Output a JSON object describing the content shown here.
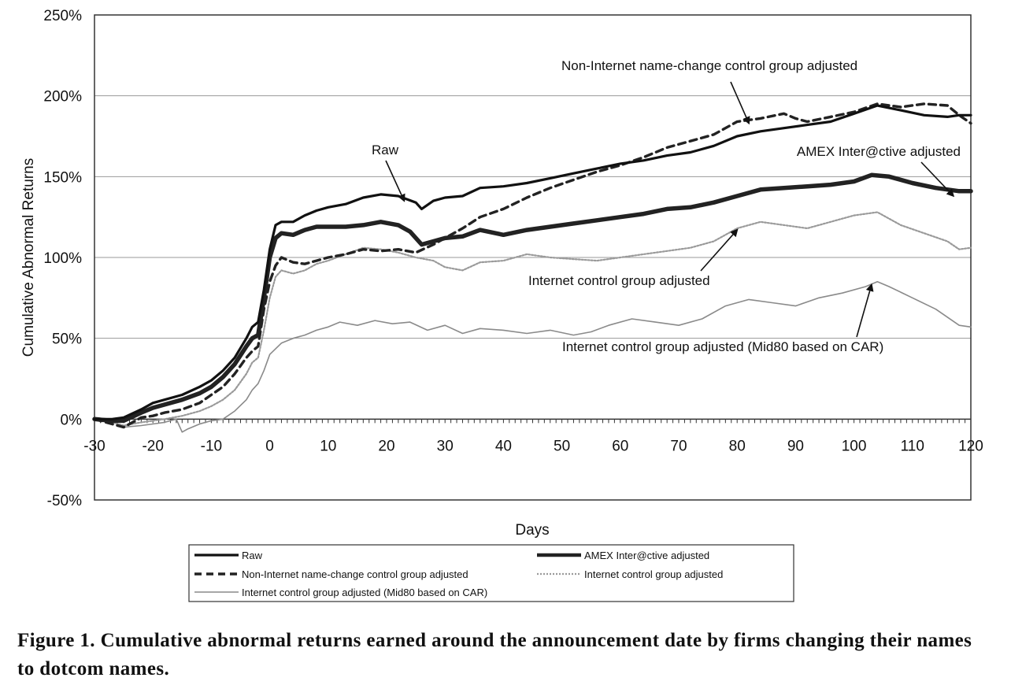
{
  "caption": "Figure 1. Cumulative abnormal returns earned around the announcement date by firms changing their names to dotcom names.",
  "chart_data": {
    "type": "line",
    "title": "",
    "xlabel": "Days",
    "ylabel": "Cumulative Abnormal Returns",
    "xlim": [
      -30,
      120
    ],
    "ylim": [
      -0.5,
      2.5
    ],
    "x_ticks": [
      -30,
      -20,
      -10,
      0,
      10,
      20,
      30,
      40,
      50,
      60,
      70,
      80,
      90,
      100,
      110,
      120
    ],
    "x_tick_labels": [
      "-30",
      "-20",
      "-10",
      "0",
      "10",
      "20",
      "30",
      "40",
      "50",
      "60",
      "70",
      "80",
      "90",
      "100",
      "110",
      "120"
    ],
    "y_ticks": [
      -0.5,
      0,
      0.5,
      1.0,
      1.5,
      2.0,
      2.5
    ],
    "y_tick_labels": [
      "-50%",
      "0%",
      "50%",
      "100%",
      "150%",
      "200%",
      "250%"
    ],
    "grid": "horizontal",
    "legend_position": "bottom",
    "series": [
      {
        "name": "Raw",
        "style": "solid",
        "color": "#111111",
        "x": [
          -30,
          -27,
          -25,
          -22,
          -20,
          -18,
          -15,
          -12,
          -10,
          -8,
          -6,
          -4,
          -3,
          -2,
          -1,
          0,
          1,
          2,
          4,
          6,
          8,
          10,
          13,
          16,
          19,
          22,
          25,
          26,
          28,
          30,
          33,
          36,
          40,
          44,
          48,
          52,
          56,
          60,
          64,
          68,
          72,
          76,
          80,
          84,
          88,
          92,
          96,
          100,
          104,
          108,
          112,
          116,
          118,
          120
        ],
        "y": [
          0.0,
          0.0,
          0.01,
          0.06,
          0.1,
          0.12,
          0.15,
          0.2,
          0.24,
          0.3,
          0.38,
          0.5,
          0.57,
          0.6,
          0.8,
          1.05,
          1.2,
          1.22,
          1.22,
          1.26,
          1.29,
          1.31,
          1.33,
          1.37,
          1.39,
          1.38,
          1.34,
          1.3,
          1.35,
          1.37,
          1.38,
          1.43,
          1.44,
          1.46,
          1.49,
          1.52,
          1.55,
          1.58,
          1.6,
          1.63,
          1.65,
          1.69,
          1.75,
          1.78,
          1.8,
          1.82,
          1.84,
          1.89,
          1.94,
          1.91,
          1.88,
          1.87,
          1.88,
          1.88
        ]
      },
      {
        "name": "AMEX Inter@ctive adjusted",
        "style": "thick",
        "color": "#222222",
        "x": [
          -30,
          -27,
          -25,
          -22,
          -20,
          -18,
          -15,
          -12,
          -10,
          -8,
          -6,
          -4,
          -3,
          -2,
          -1,
          0,
          1,
          2,
          4,
          6,
          8,
          10,
          13,
          16,
          19,
          22,
          24,
          26,
          28,
          30,
          33,
          36,
          40,
          44,
          48,
          52,
          56,
          60,
          64,
          68,
          72,
          76,
          80,
          84,
          88,
          92,
          96,
          100,
          103,
          106,
          110,
          114,
          118,
          120
        ],
        "y": [
          0.0,
          -0.01,
          -0.01,
          0.04,
          0.07,
          0.09,
          0.12,
          0.16,
          0.2,
          0.26,
          0.34,
          0.45,
          0.5,
          0.52,
          0.75,
          1.0,
          1.12,
          1.15,
          1.14,
          1.17,
          1.19,
          1.19,
          1.19,
          1.2,
          1.22,
          1.2,
          1.16,
          1.08,
          1.1,
          1.12,
          1.13,
          1.17,
          1.14,
          1.17,
          1.19,
          1.21,
          1.23,
          1.25,
          1.27,
          1.3,
          1.31,
          1.34,
          1.38,
          1.42,
          1.43,
          1.44,
          1.45,
          1.47,
          1.51,
          1.5,
          1.46,
          1.43,
          1.41,
          1.41
        ]
      },
      {
        "name": "Non-Internet name-change control group adjusted",
        "style": "dashed",
        "color": "#222222",
        "x": [
          -30,
          -27,
          -25,
          -22,
          -20,
          -18,
          -15,
          -12,
          -10,
          -8,
          -6,
          -4,
          -3,
          -2,
          -1,
          0,
          1,
          2,
          4,
          6,
          8,
          10,
          13,
          16,
          19,
          22,
          25,
          28,
          30,
          33,
          36,
          40,
          44,
          48,
          52,
          56,
          60,
          64,
          68,
          72,
          76,
          80,
          84,
          88,
          90,
          92,
          96,
          100,
          104,
          108,
          112,
          116,
          118,
          120
        ],
        "y": [
          0.0,
          -0.03,
          -0.05,
          0.01,
          0.02,
          0.04,
          0.06,
          0.1,
          0.15,
          0.2,
          0.28,
          0.38,
          0.42,
          0.45,
          0.68,
          0.85,
          0.95,
          1.0,
          0.97,
          0.96,
          0.98,
          1.0,
          1.02,
          1.05,
          1.04,
          1.05,
          1.03,
          1.08,
          1.12,
          1.18,
          1.25,
          1.3,
          1.37,
          1.43,
          1.48,
          1.53,
          1.57,
          1.62,
          1.68,
          1.72,
          1.76,
          1.84,
          1.86,
          1.89,
          1.86,
          1.84,
          1.87,
          1.9,
          1.95,
          1.93,
          1.95,
          1.94,
          1.88,
          1.83
        ]
      },
      {
        "name": "Internet control group adjusted",
        "style": "dotted",
        "color": "#9a9a9a",
        "x": [
          -30,
          -27,
          -25,
          -22,
          -20,
          -18,
          -15,
          -12,
          -10,
          -8,
          -6,
          -4,
          -3,
          -2,
          -1,
          0,
          1,
          2,
          4,
          6,
          8,
          10,
          13,
          16,
          19,
          22,
          25,
          28,
          30,
          33,
          36,
          40,
          44,
          48,
          52,
          56,
          60,
          64,
          68,
          72,
          76,
          80,
          84,
          88,
          92,
          96,
          100,
          104,
          108,
          112,
          116,
          118,
          120
        ],
        "y": [
          0.0,
          -0.02,
          -0.04,
          -0.02,
          -0.01,
          0.0,
          0.02,
          0.05,
          0.08,
          0.12,
          0.18,
          0.28,
          0.35,
          0.38,
          0.55,
          0.75,
          0.88,
          0.92,
          0.9,
          0.92,
          0.96,
          0.98,
          1.02,
          1.06,
          1.05,
          1.03,
          1.0,
          0.98,
          0.94,
          0.92,
          0.97,
          0.98,
          1.02,
          1.0,
          0.99,
          0.98,
          1.0,
          1.02,
          1.04,
          1.06,
          1.1,
          1.18,
          1.22,
          1.2,
          1.18,
          1.22,
          1.26,
          1.28,
          1.2,
          1.15,
          1.1,
          1.05,
          1.06
        ]
      },
      {
        "name": "Internet control group adjusted (Mid80 based on CAR)",
        "style": "thin",
        "color": "#8a8a8a",
        "x": [
          -30,
          -27,
          -25,
          -22,
          -20,
          -18,
          -16,
          -15,
          -14,
          -12,
          -10,
          -8,
          -6,
          -4,
          -3,
          -2,
          -1,
          0,
          2,
          4,
          6,
          8,
          10,
          12,
          15,
          18,
          21,
          24,
          27,
          30,
          33,
          36,
          40,
          44,
          48,
          52,
          55,
          58,
          62,
          66,
          70,
          74,
          78,
          82,
          86,
          90,
          94,
          98,
          102,
          104,
          106,
          110,
          114,
          118,
          120
        ],
        "y": [
          0.0,
          -0.01,
          -0.05,
          -0.04,
          -0.03,
          -0.02,
          0.0,
          -0.08,
          -0.06,
          -0.03,
          -0.01,
          0.0,
          0.05,
          0.12,
          0.18,
          0.22,
          0.3,
          0.4,
          0.47,
          0.5,
          0.52,
          0.55,
          0.57,
          0.6,
          0.58,
          0.61,
          0.59,
          0.6,
          0.55,
          0.58,
          0.53,
          0.56,
          0.55,
          0.53,
          0.55,
          0.52,
          0.54,
          0.58,
          0.62,
          0.6,
          0.58,
          0.62,
          0.7,
          0.74,
          0.72,
          0.7,
          0.75,
          0.78,
          0.82,
          0.85,
          0.82,
          0.75,
          0.68,
          0.58,
          0.57
        ]
      }
    ],
    "annotations": [
      {
        "text": "Non-Internet name-change control group adjusted",
        "series": "Non-Internet name-change control group adjusted",
        "target_x": 82,
        "target_y": 1.86
      },
      {
        "text": "Raw",
        "series": "Raw",
        "target_x": 23,
        "target_y": 1.38
      },
      {
        "text": "AMEX Inter@ctive adjusted",
        "series": "AMEX Inter@ctive adjusted",
        "target_x": 117,
        "target_y": 1.41
      },
      {
        "text": "Internet control group adjusted",
        "series": "Internet control group adjusted",
        "target_x": 80,
        "target_y": 1.2
      },
      {
        "text": "Internet control group adjusted (Mid80 based on CAR)",
        "series": "Internet control group adjusted (Mid80 based on CAR)",
        "target_x": 103,
        "target_y": 0.86
      }
    ]
  }
}
